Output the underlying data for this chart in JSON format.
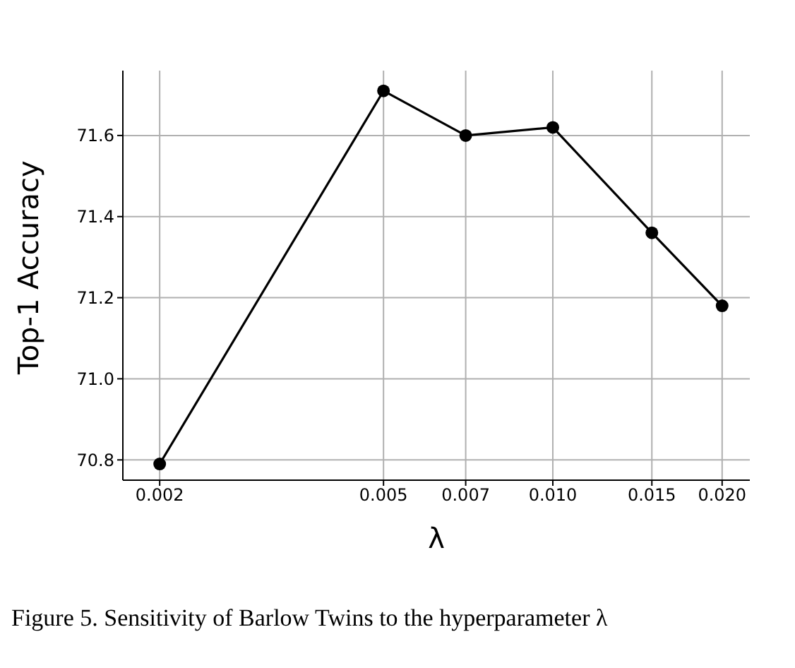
{
  "chart_data": {
    "type": "line",
    "xlabel": "λ",
    "ylabel": "Top-1 Accuracy",
    "x": [
      0.002,
      0.005,
      0.007,
      0.01,
      0.015,
      0.02
    ],
    "series": [
      {
        "color": "#000000",
        "values": [
          70.79,
          71.71,
          71.6,
          71.62,
          71.36,
          71.18
        ]
      }
    ],
    "log": "x",
    "xlim": [
      0.00172,
      0.0224
    ],
    "xticks": [
      0.002,
      0.005,
      0.007,
      {
        "value": 0.01,
        "label": "0.010"
      },
      0.015,
      {
        "value": 0.02,
        "label": "0.020"
      }
    ],
    "ylim": [
      70.75,
      71.76
    ],
    "yticks": [
      {
        "value": 70.8,
        "label": "70.8"
      },
      {
        "value": 71.0,
        "label": "71.0"
      },
      {
        "value": 71.2,
        "label": "71.2"
      },
      {
        "value": 71.4,
        "label": "71.4"
      },
      {
        "value": 71.6,
        "label": "71.6"
      }
    ],
    "grid": true,
    "marker": "circle",
    "line_style": "solid",
    "annotations": [
      "Figure 5. Sensitivity of Barlow Twins to the hyperparameter λ"
    ]
  }
}
